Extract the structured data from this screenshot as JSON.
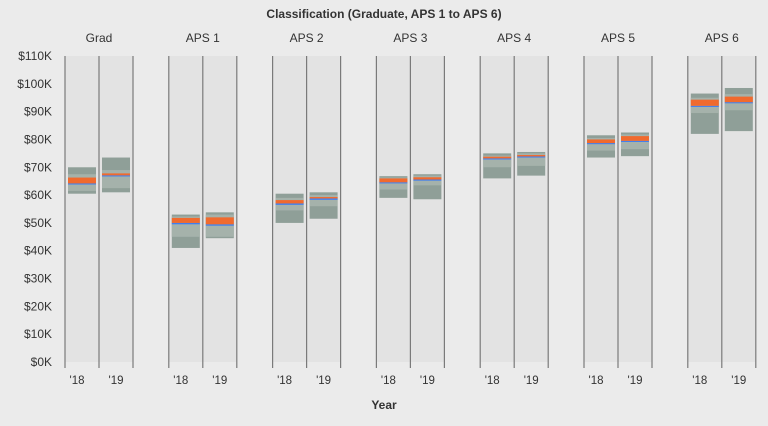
{
  "chart_data": {
    "type": "box",
    "title": "Classification (Graduate, APS 1 to APS 6)",
    "xlabel": "Year",
    "ylabel": "",
    "ylim": [
      0,
      110000
    ],
    "yticks": [
      "$0K",
      "$10K",
      "$20K",
      "$30K",
      "$40K",
      "$50K",
      "$60K",
      "$70K",
      "$80K",
      "$90K",
      "$100K",
      "$110K"
    ],
    "year_labels": [
      "'18",
      "'19"
    ],
    "grid": false,
    "colors": {
      "panel": "#e3e3e3",
      "outer": "#8f9f98",
      "inner": "#a5b2ab",
      "lower_mid": "#3f7ef0",
      "upper_mid": "#f06a2e",
      "divider": "#7a7a7a"
    },
    "groups": [
      {
        "name": "Grad",
        "years": [
          {
            "year": "'18",
            "min": 60500,
            "q1": 61500,
            "lower_mid": 63800,
            "median": 64200,
            "upper_mid": 66300,
            "q3": 67500,
            "max": 70000
          },
          {
            "year": "'19",
            "min": 61000,
            "q1": 62500,
            "lower_mid": 66700,
            "median": 67100,
            "upper_mid": 67800,
            "q3": 69000,
            "max": 73500
          }
        ]
      },
      {
        "name": "APS 1",
        "years": [
          {
            "year": "'18",
            "min": 41000,
            "q1": 45000,
            "lower_mid": 49500,
            "median": 50000,
            "upper_mid": 51800,
            "q3": 52300,
            "max": 53000
          },
          {
            "year": "'19",
            "min": 44500,
            "q1": 45000,
            "lower_mid": 49000,
            "median": 49500,
            "upper_mid": 52000,
            "q3": 53000,
            "max": 53800
          }
        ]
      },
      {
        "name": "APS 2",
        "years": [
          {
            "year": "'18",
            "min": 50000,
            "q1": 54500,
            "lower_mid": 56500,
            "median": 57000,
            "upper_mid": 58200,
            "q3": 59000,
            "max": 60500
          },
          {
            "year": "'19",
            "min": 51500,
            "q1": 56000,
            "lower_mid": 58300,
            "median": 58800,
            "upper_mid": 59300,
            "q3": 60000,
            "max": 61000
          }
        ]
      },
      {
        "name": "APS 3",
        "years": [
          {
            "year": "'18",
            "min": 59000,
            "q1": 62000,
            "lower_mid": 64200,
            "median": 64600,
            "upper_mid": 66000,
            "q3": 66300,
            "max": 66800
          },
          {
            "year": "'19",
            "min": 58500,
            "q1": 63500,
            "lower_mid": 65200,
            "median": 65600,
            "upper_mid": 66400,
            "q3": 67000,
            "max": 67500
          }
        ]
      },
      {
        "name": "APS 4",
        "years": [
          {
            "year": "'18",
            "min": 66000,
            "q1": 70000,
            "lower_mid": 72800,
            "median": 73200,
            "upper_mid": 73800,
            "q3": 74200,
            "max": 75000
          },
          {
            "year": "'19",
            "min": 67000,
            "q1": 70500,
            "lower_mid": 73500,
            "median": 73900,
            "upper_mid": 74400,
            "q3": 75000,
            "max": 75500
          }
        ]
      },
      {
        "name": "APS 5",
        "years": [
          {
            "year": "'18",
            "min": 73500,
            "q1": 76000,
            "lower_mid": 78300,
            "median": 78700,
            "upper_mid": 80000,
            "q3": 80500,
            "max": 81500
          },
          {
            "year": "'19",
            "min": 74000,
            "q1": 76500,
            "lower_mid": 79100,
            "median": 79500,
            "upper_mid": 81200,
            "q3": 81800,
            "max": 82500
          }
        ]
      },
      {
        "name": "APS 6",
        "years": [
          {
            "year": "'18",
            "min": 82000,
            "q1": 89500,
            "lower_mid": 91700,
            "median": 92100,
            "upper_mid": 94300,
            "q3": 95000,
            "max": 96500
          },
          {
            "year": "'19",
            "min": 83000,
            "q1": 90500,
            "lower_mid": 93000,
            "median": 93400,
            "upper_mid": 95400,
            "q3": 96300,
            "max": 98500
          }
        ]
      }
    ]
  }
}
